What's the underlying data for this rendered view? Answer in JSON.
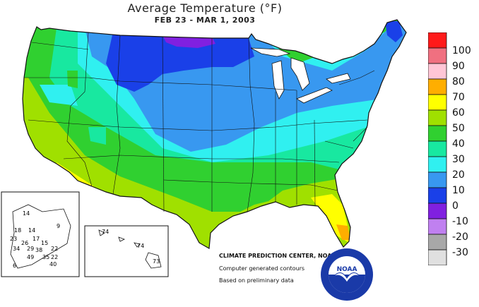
{
  "header": {
    "title": "Average Temperature (°F)",
    "subtitle": "FEB 23 - MAR  1, 2003"
  },
  "legend": {
    "items": [
      {
        "label": "100",
        "color": "#ff1a1a"
      },
      {
        "label": "90",
        "color": "#f07080"
      },
      {
        "label": "80",
        "color": "#ffc6d6"
      },
      {
        "label": "70",
        "color": "#ffae00"
      },
      {
        "label": "60",
        "color": "#ffff00"
      },
      {
        "label": "50",
        "color": "#a0e000"
      },
      {
        "label": "40",
        "color": "#30d030"
      },
      {
        "label": "30",
        "color": "#18e8a0"
      },
      {
        "label": "20",
        "color": "#30f0f0"
      },
      {
        "label": "10",
        "color": "#3898f0"
      },
      {
        "label": "0",
        "color": "#1a40e8"
      },
      {
        "label": "-10",
        "color": "#8020e0"
      },
      {
        "label": "-20",
        "color": "#c080f0"
      },
      {
        "label": "-30",
        "color": "#a8a8a8"
      },
      {
        "label": "",
        "color": "#e0e0e0"
      }
    ]
  },
  "credits": {
    "line1": "CLIMATE PREDICTION CENTER, NOAA",
    "line2": "Computer generated contours",
    "line3": "Based on preliminary data"
  },
  "logo": {
    "text": "NOAA"
  },
  "alaska_labels": [
    "14",
    "18",
    "14",
    "9",
    "23",
    "26",
    "17",
    "15",
    "34",
    "29",
    "38",
    "22",
    "49",
    "35",
    "22",
    "40",
    "6"
  ],
  "hawaii_labels": [
    "74",
    "74",
    "73"
  ]
}
